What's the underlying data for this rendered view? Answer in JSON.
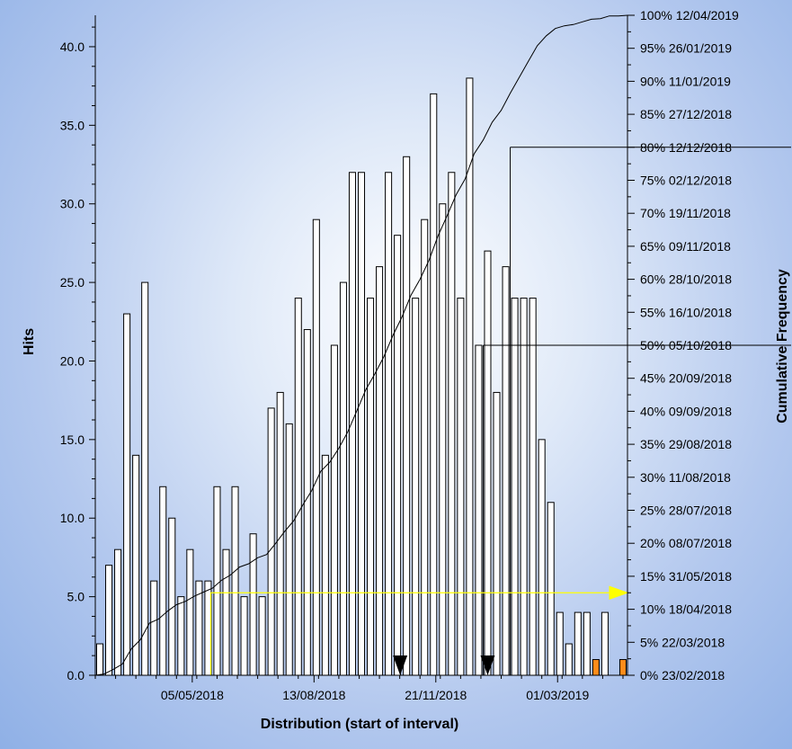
{
  "chart_data": {
    "type": "bar",
    "title": "",
    "xlabel": "Distribution (start of interval)",
    "ylabel": "Hits",
    "y2label": "Cumulative Frequency",
    "ylim": [
      0,
      42
    ],
    "y_ticks": [
      "0.0",
      "5.0",
      "10.0",
      "15.0",
      "20.0",
      "25.0",
      "30.0",
      "35.0",
      "40.0"
    ],
    "x_ticks": [
      {
        "label": "05/05/2018",
        "bin": 10.75
      },
      {
        "label": "13/08/2018",
        "bin": 24.25
      },
      {
        "label": "21/11/2018",
        "bin": 37.75
      },
      {
        "label": "01/03/2019",
        "bin": 51.25
      }
    ],
    "bars": [
      2,
      7,
      8,
      23,
      14,
      25,
      6,
      12,
      10,
      5,
      8,
      6,
      6,
      12,
      8,
      12,
      5,
      9,
      5,
      17,
      18,
      16,
      24,
      22,
      29,
      14,
      21,
      25,
      32,
      32,
      24,
      26,
      32,
      28,
      33,
      24,
      29,
      37,
      30,
      32,
      24,
      38,
      21,
      27,
      18,
      26,
      24,
      24,
      24,
      15,
      11,
      4,
      2,
      4,
      4,
      1,
      4,
      0,
      1
    ],
    "highlight_bars": [
      55,
      58
    ],
    "colors": {
      "bar_fill": "#ffffff",
      "bar_stroke": "#000000",
      "highlight_fill": "#ff8c1a",
      "marker_line": "#ffff00"
    },
    "cumulative_axis": [
      {
        "pct": "0%",
        "date": "23/02/2018"
      },
      {
        "pct": "5%",
        "date": "22/03/2018"
      },
      {
        "pct": "10%",
        "date": "18/04/2018"
      },
      {
        "pct": "15%",
        "date": "31/05/2018"
      },
      {
        "pct": "20%",
        "date": "08/07/2018"
      },
      {
        "pct": "25%",
        "date": "28/07/2018"
      },
      {
        "pct": "30%",
        "date": "11/08/2018"
      },
      {
        "pct": "35%",
        "date": "29/08/2018"
      },
      {
        "pct": "40%",
        "date": "09/09/2018"
      },
      {
        "pct": "45%",
        "date": "20/09/2018"
      },
      {
        "pct": "50%",
        "date": "05/10/2018"
      },
      {
        "pct": "55%",
        "date": "16/10/2018"
      },
      {
        "pct": "60%",
        "date": "28/10/2018"
      },
      {
        "pct": "65%",
        "date": "09/11/2018"
      },
      {
        "pct": "70%",
        "date": "19/11/2018"
      },
      {
        "pct": "75%",
        "date": "02/12/2018"
      },
      {
        "pct": "80%",
        "date": "12/12/2018"
      },
      {
        "pct": "85%",
        "date": "27/12/2018"
      },
      {
        "pct": "90%",
        "date": "11/01/2019"
      },
      {
        "pct": "95%",
        "date": "26/01/2019"
      },
      {
        "pct": "100%",
        "date": "12/04/2019"
      }
    ],
    "reference_lines": [
      {
        "pct": 50,
        "bin": 43.0,
        "color": "black"
      },
      {
        "pct": 80,
        "bin": 46.0,
        "color": "black"
      },
      {
        "pct": 12.5,
        "bin": 12.8,
        "color": "yellow"
      }
    ],
    "markers": [
      {
        "bin": 33.8,
        "shape": "triangle-down"
      },
      {
        "bin": 43.5,
        "shape": "triangle-down"
      }
    ]
  }
}
